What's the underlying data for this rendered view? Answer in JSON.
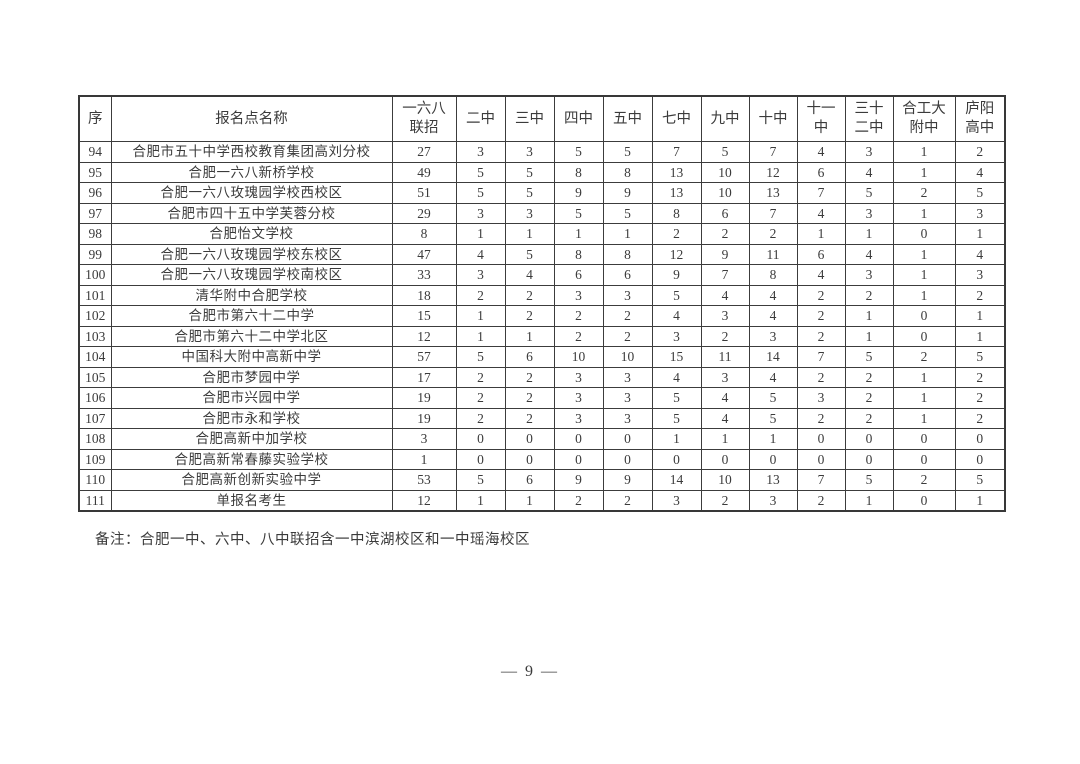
{
  "table": {
    "headers": [
      "序",
      "报名点名称",
      "一六八\n联招",
      "二中",
      "三中",
      "四中",
      "五中",
      "七中",
      "九中",
      "十中",
      "十一\n中",
      "三十\n二中",
      "合工大\n附中",
      "庐阳\n高中"
    ],
    "rows": [
      {
        "no": "94",
        "name": "合肥市五十中学西校教育集团高刘分校",
        "values": [
          27,
          3,
          3,
          5,
          5,
          7,
          5,
          7,
          4,
          3,
          1,
          2
        ]
      },
      {
        "no": "95",
        "name": "合肥一六八新桥学校",
        "values": [
          49,
          5,
          5,
          8,
          8,
          13,
          10,
          12,
          6,
          4,
          1,
          4
        ]
      },
      {
        "no": "96",
        "name": "合肥一六八玫瑰园学校西校区",
        "values": [
          51,
          5,
          5,
          9,
          9,
          13,
          10,
          13,
          7,
          5,
          2,
          5
        ]
      },
      {
        "no": "97",
        "name": "合肥市四十五中学芙蓉分校",
        "values": [
          29,
          3,
          3,
          5,
          5,
          8,
          6,
          7,
          4,
          3,
          1,
          3
        ]
      },
      {
        "no": "98",
        "name": "合肥怡文学校",
        "values": [
          8,
          1,
          1,
          1,
          1,
          2,
          2,
          2,
          1,
          1,
          0,
          1
        ]
      },
      {
        "no": "99",
        "name": "合肥一六八玫瑰园学校东校区",
        "values": [
          47,
          4,
          5,
          8,
          8,
          12,
          9,
          11,
          6,
          4,
          1,
          4
        ]
      },
      {
        "no": "100",
        "name": "合肥一六八玫瑰园学校南校区",
        "values": [
          33,
          3,
          4,
          6,
          6,
          9,
          7,
          8,
          4,
          3,
          1,
          3
        ]
      },
      {
        "no": "101",
        "name": "清华附中合肥学校",
        "values": [
          18,
          2,
          2,
          3,
          3,
          5,
          4,
          4,
          2,
          2,
          1,
          2
        ]
      },
      {
        "no": "102",
        "name": "合肥市第六十二中学",
        "values": [
          15,
          1,
          2,
          2,
          2,
          4,
          3,
          4,
          2,
          1,
          0,
          1
        ]
      },
      {
        "no": "103",
        "name": "合肥市第六十二中学北区",
        "values": [
          12,
          1,
          1,
          2,
          2,
          3,
          2,
          3,
          2,
          1,
          0,
          1
        ]
      },
      {
        "no": "104",
        "name": "中国科大附中高新中学",
        "values": [
          57,
          5,
          6,
          10,
          10,
          15,
          11,
          14,
          7,
          5,
          2,
          5
        ]
      },
      {
        "no": "105",
        "name": "合肥市梦园中学",
        "values": [
          17,
          2,
          2,
          3,
          3,
          4,
          3,
          4,
          2,
          2,
          1,
          2
        ]
      },
      {
        "no": "106",
        "name": "合肥市兴园中学",
        "values": [
          19,
          2,
          2,
          3,
          3,
          5,
          4,
          5,
          3,
          2,
          1,
          2
        ]
      },
      {
        "no": "107",
        "name": "合肥市永和学校",
        "values": [
          19,
          2,
          2,
          3,
          3,
          5,
          4,
          5,
          2,
          2,
          1,
          2
        ]
      },
      {
        "no": "108",
        "name": "合肥高新中加学校",
        "values": [
          3,
          0,
          0,
          0,
          0,
          1,
          1,
          1,
          0,
          0,
          0,
          0
        ]
      },
      {
        "no": "109",
        "name": "合肥高新常春藤实验学校",
        "values": [
          1,
          0,
          0,
          0,
          0,
          0,
          0,
          0,
          0,
          0,
          0,
          0
        ]
      },
      {
        "no": "110",
        "name": "合肥高新创新实验中学",
        "values": [
          53,
          5,
          6,
          9,
          9,
          14,
          10,
          13,
          7,
          5,
          2,
          5
        ]
      },
      {
        "no": "111",
        "name": "单报名考生",
        "values": [
          12,
          1,
          1,
          2,
          2,
          3,
          2,
          3,
          2,
          1,
          0,
          1
        ]
      }
    ]
  },
  "footnote": "备注：合肥一中、六中、八中联招含一中滨湖校区和一中瑶海校区",
  "page_number": "— 9 —"
}
